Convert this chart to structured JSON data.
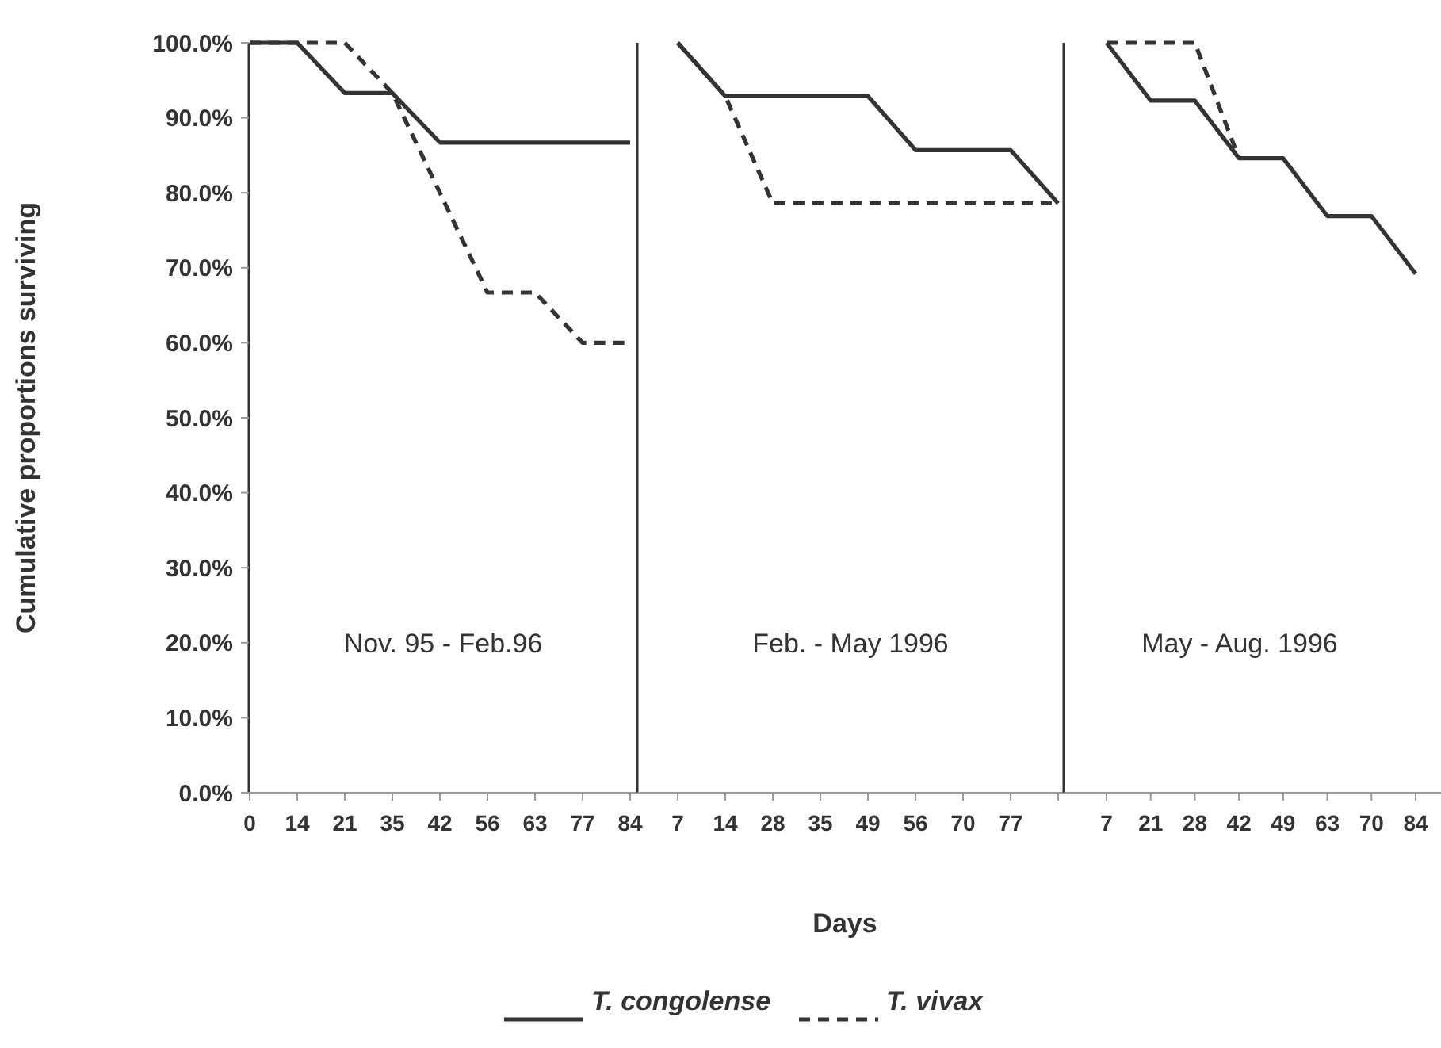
{
  "chart_data": [
    {
      "type": "line",
      "title": "Nov. 95 - Feb.96",
      "ylabel": "Cumulative proportions surviving",
      "categories": [
        "0",
        "14",
        "21",
        "35",
        "42",
        "56",
        "63",
        "77",
        "84"
      ],
      "series": [
        {
          "color": "#333333",
          "line_style": "solid",
          "values": [
            100,
            100,
            93.3,
            93.3,
            86.7,
            86.7,
            86.7,
            86.7,
            86.7
          ]
        },
        {
          "color": "#333333",
          "line_style": "dashed",
          "values": [
            100,
            100,
            100,
            93.3,
            80,
            66.7,
            66.7,
            60,
            60
          ]
        }
      ],
      "ylim": [
        0,
        100
      ],
      "yticks": [
        {
          "value": 0,
          "label": "0.0%"
        },
        {
          "value": 10,
          "label": "10.0%"
        },
        {
          "value": 20,
          "label": "20.0%"
        },
        {
          "value": 30,
          "label": "30.0%"
        },
        {
          "value": 40,
          "label": "40.0%"
        },
        {
          "value": 50,
          "label": "50.0%"
        },
        {
          "value": 60,
          "label": "60.0%"
        },
        {
          "value": 70,
          "label": "70.0%"
        },
        {
          "value": 80,
          "label": "80.0%"
        },
        {
          "value": 90,
          "label": "90.0%"
        },
        {
          "value": 100,
          "label": "100.0%"
        }
      ],
      "grid": false
    },
    {
      "type": "line",
      "title": "Feb. - May 1996",
      "xlabel": "Days",
      "categories": [
        "7",
        "14",
        "28",
        "35",
        "49",
        "56",
        "70",
        "77",
        null
      ],
      "series": [
        {
          "name": "T. congolense",
          "color": "#333333",
          "line_style": "solid",
          "values": [
            100,
            92.9,
            92.9,
            92.9,
            92.9,
            85.7,
            85.7,
            85.7,
            78.6
          ]
        },
        {
          "name": "T. vivax",
          "color": "#333333",
          "line_style": "dashed",
          "values": [
            100,
            92.9,
            78.6,
            78.6,
            78.6,
            78.6,
            78.6,
            78.6,
            78.6
          ]
        }
      ],
      "ylim": [
        0,
        100
      ],
      "tick_labels": "x",
      "grid": false,
      "legend": "bottom"
    },
    {
      "type": "line",
      "title": "May - Aug. 1996",
      "categories": [
        "7",
        "21",
        "28",
        "42",
        "49",
        "63",
        "70",
        "84"
      ],
      "series": [
        {
          "color": "#333333",
          "line_style": "solid",
          "values": [
            100,
            92.3,
            92.3,
            84.6,
            84.6,
            76.9,
            76.9,
            69.2
          ]
        },
        {
          "color": "#333333",
          "line_style": "dashed",
          "values": [
            100,
            100,
            100,
            84.6,
            null,
            null,
            null,
            null
          ]
        }
      ],
      "ylim": [
        0,
        100
      ],
      "tick_labels": "x",
      "grid": false
    }
  ]
}
